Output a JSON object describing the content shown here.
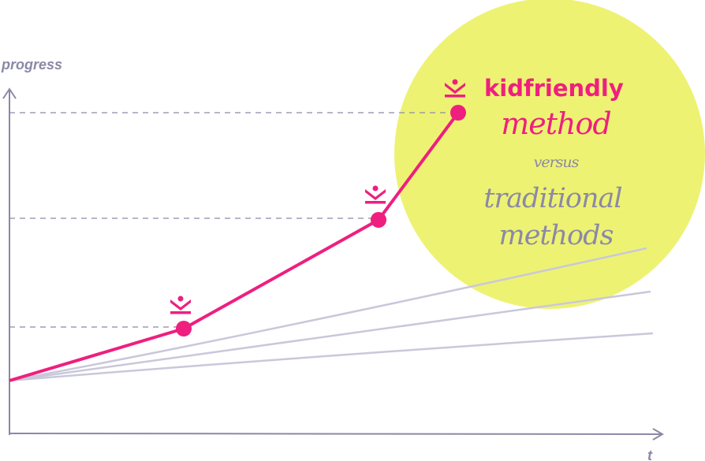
{
  "axes": {
    "y_label": "progress",
    "x_label": "t"
  },
  "legend": {
    "brand": "kidfriendly",
    "method": "method",
    "versus": "versus",
    "traditional": "traditional",
    "methods": "methods"
  }
}
